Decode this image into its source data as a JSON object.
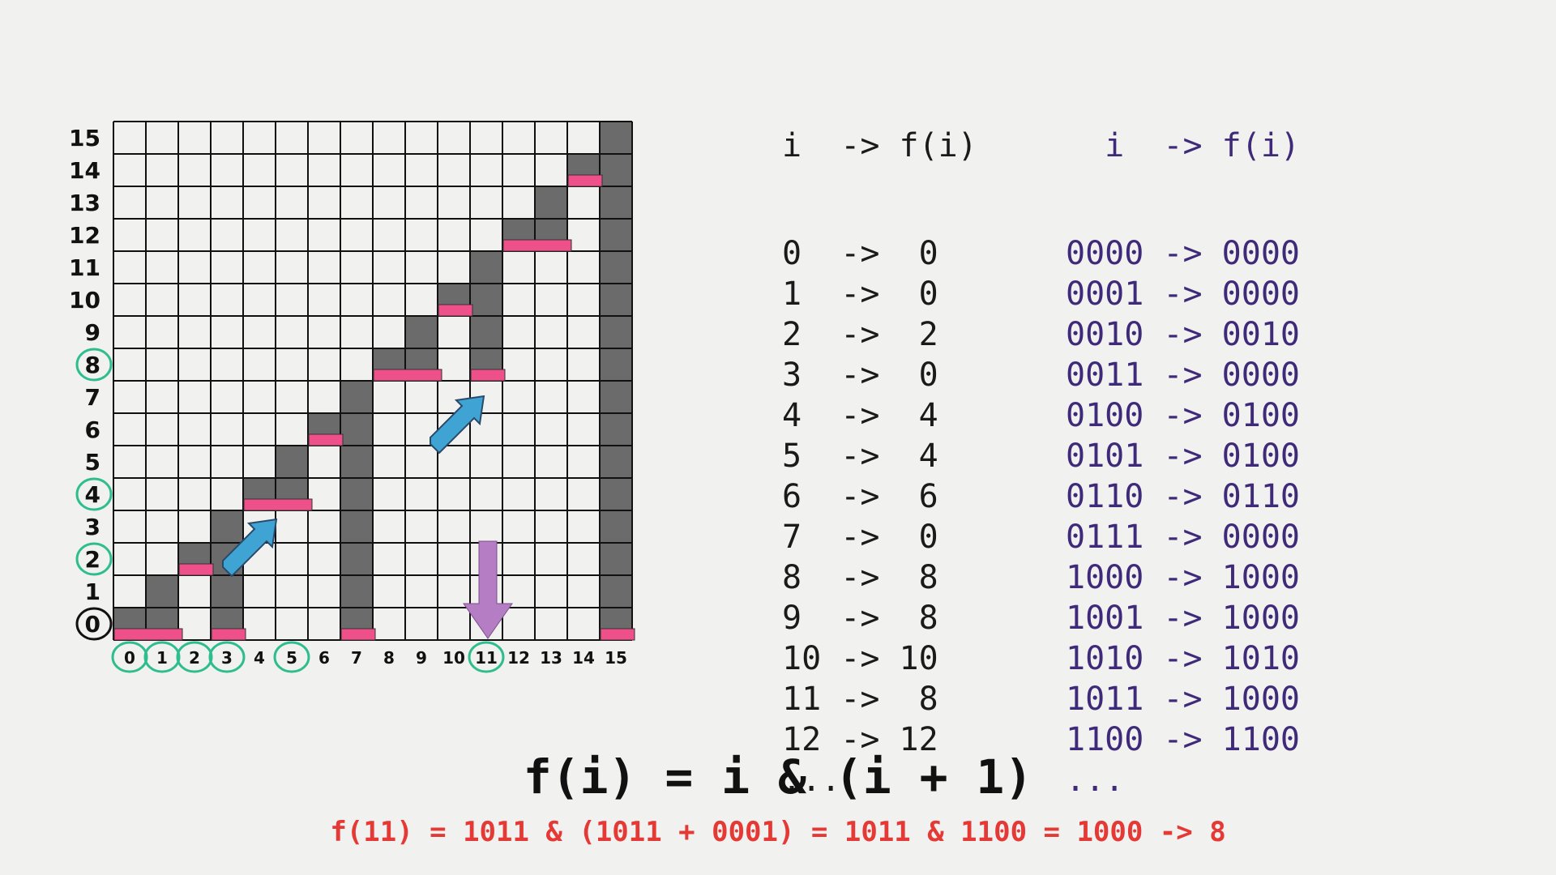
{
  "diagram": {
    "y_labels": [
      "0",
      "1",
      "2",
      "3",
      "4",
      "5",
      "6",
      "7",
      "8",
      "9",
      "10",
      "11",
      "12",
      "13",
      "14",
      "15"
    ],
    "x_labels": [
      "0",
      "1",
      "2",
      "3",
      "4",
      "5",
      "6",
      "7",
      "8",
      "9",
      "10",
      "11",
      "12",
      "13",
      "14",
      "15"
    ],
    "circled_y": [
      0,
      2,
      4,
      8
    ],
    "circled_x": [
      0,
      1,
      2,
      3,
      5,
      11
    ],
    "ranges": [
      {
        "i": 0,
        "f": 0
      },
      {
        "i": 1,
        "f": 0
      },
      {
        "i": 2,
        "f": 2
      },
      {
        "i": 3,
        "f": 0
      },
      {
        "i": 4,
        "f": 4
      },
      {
        "i": 5,
        "f": 4
      },
      {
        "i": 6,
        "f": 6
      },
      {
        "i": 7,
        "f": 0
      },
      {
        "i": 8,
        "f": 8
      },
      {
        "i": 9,
        "f": 8
      },
      {
        "i": 10,
        "f": 10
      },
      {
        "i": 11,
        "f": 8
      },
      {
        "i": 12,
        "f": 12
      },
      {
        "i": 13,
        "f": 12
      },
      {
        "i": 14,
        "f": 14
      },
      {
        "i": 15,
        "f": 0
      }
    ],
    "colors": {
      "cell_fill": "#6b6b6b",
      "marker": "#f0508a",
      "circle": "#2ebd8f",
      "arrow_blue": "#3fa4d4",
      "arrow_purple": "#b57ec4",
      "grid_line": "#111111"
    }
  },
  "table_decimal": {
    "header": "i  -> f(i)",
    "rows": [
      "0  ->  0",
      "1  ->  0",
      "2  ->  2",
      "3  ->  0",
      "4  ->  4",
      "5  ->  4",
      "6  ->  6",
      "7  ->  0",
      "8  ->  8",
      "9  ->  8",
      "10 -> 10",
      "11 ->  8",
      "12 -> 12",
      "..."
    ]
  },
  "table_binary": {
    "header": "  i  -> f(i)",
    "rows": [
      "0000 -> 0000",
      "0001 -> 0000",
      "0010 -> 0010",
      "0011 -> 0000",
      "0100 -> 0100",
      "0101 -> 0100",
      "0110 -> 0110",
      "0111 -> 0000",
      "1000 -> 1000",
      "1001 -> 1000",
      "1010 -> 1010",
      "1011 -> 1000",
      "1100 -> 1100",
      "..."
    ]
  },
  "formula": "f(i) = i & (i + 1)",
  "example": "f(11) = 1011 & (1011 + 0001) = 1011 & 1100 = 1000 -> 8"
}
